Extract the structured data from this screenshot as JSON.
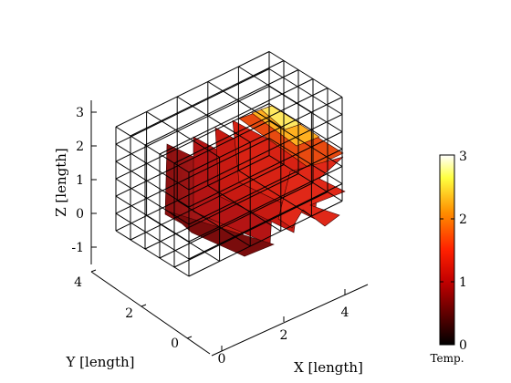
{
  "chart_data": {
    "type": "3d-slice",
    "xlabel": "X [length]",
    "ylabel": "Y [length]",
    "zlabel": "Z [length]",
    "x_ticks": [
      "0",
      "2",
      "4"
    ],
    "y_ticks": [
      "0",
      "2",
      "4"
    ],
    "z_ticks": [
      "-1",
      "0",
      "1",
      "2",
      "3"
    ],
    "xlim": [
      0,
      5
    ],
    "ylim": [
      0,
      4
    ],
    "zlim": [
      -1.5,
      3.5
    ],
    "grid": true,
    "colormap": "hot",
    "colorbar": {
      "title": "Temp.",
      "ticks": [
        "0",
        "1",
        "2",
        "3"
      ],
      "range": [
        0,
        3
      ],
      "placement": "right"
    }
  }
}
